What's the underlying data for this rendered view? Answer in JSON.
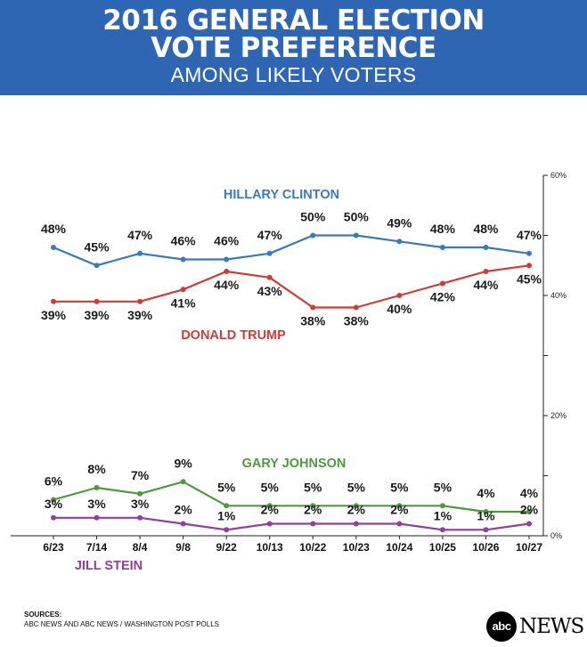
{
  "header": {
    "title_line1": "2016 GENERAL ELECTION",
    "title_line2": "VOTE PREFERENCE",
    "subtitle": "AMONG LIKELY VOTERS",
    "background": "#2e66b3"
  },
  "chart_data": {
    "type": "line",
    "title": "2016 General Election Vote Preference",
    "subtitle": "Among Likely Voters",
    "categories": [
      "6/23",
      "7/14",
      "8/4",
      "9/8",
      "9/22",
      "10/13",
      "10/22",
      "10/23",
      "10/24",
      "10/25",
      "10/26",
      "10/27"
    ],
    "ylim": [
      0,
      60
    ],
    "yticks": [
      "0%",
      "20%",
      "40%",
      "60%"
    ],
    "ytick_values": [
      0,
      20,
      40,
      60
    ],
    "y_axis_side": "right",
    "series": [
      {
        "name": "HILLARY CLINTON",
        "color": "#3a7ab5",
        "values": [
          48,
          45,
          47,
          46,
          46,
          47,
          50,
          50,
          49,
          48,
          48,
          47
        ],
        "labels": [
          "48%",
          "45%",
          "47%",
          "46%",
          "46%",
          "47%",
          "50%",
          "50%",
          "49%",
          "48%",
          "48%",
          "47%"
        ],
        "label_position": "above"
      },
      {
        "name": "DONALD TRUMP",
        "color": "#cc3d3a",
        "values": [
          39,
          39,
          39,
          41,
          44,
          43,
          38,
          38,
          40,
          42,
          44,
          45
        ],
        "labels": [
          "39%",
          "39%",
          "39%",
          "41%",
          "44%",
          "43%",
          "38%",
          "38%",
          "40%",
          "42%",
          "44%",
          "45%"
        ],
        "label_position": "below"
      },
      {
        "name": "GARY JOHNSON",
        "color": "#4d9a3c",
        "values": [
          6,
          8,
          7,
          9,
          5,
          5,
          5,
          5,
          5,
          5,
          4,
          4
        ],
        "labels": [
          "6%",
          "8%",
          "7%",
          "9%",
          "5%",
          "5%",
          "5%",
          "5%",
          "5%",
          "5%",
          "4%",
          "4%"
        ],
        "label_position": "above"
      },
      {
        "name": "JILL STEIN",
        "color": "#8f3f9e",
        "values": [
          3,
          3,
          3,
          2,
          1,
          2,
          2,
          2,
          2,
          1,
          1,
          2
        ],
        "labels": [
          "3%",
          "3%",
          "3%",
          "2%",
          "1%",
          "2%",
          "2%",
          "2%",
          "2%",
          "1%",
          "1%",
          "2%"
        ],
        "label_position": "above"
      }
    ]
  },
  "footer": {
    "sources_label": "SOURCES:",
    "sources_text": "ABC NEWS AND ABC NEWS / WASHINGTON POST POLLS"
  },
  "logo": {
    "circle_text": "abc",
    "word_text": "NEWS"
  }
}
